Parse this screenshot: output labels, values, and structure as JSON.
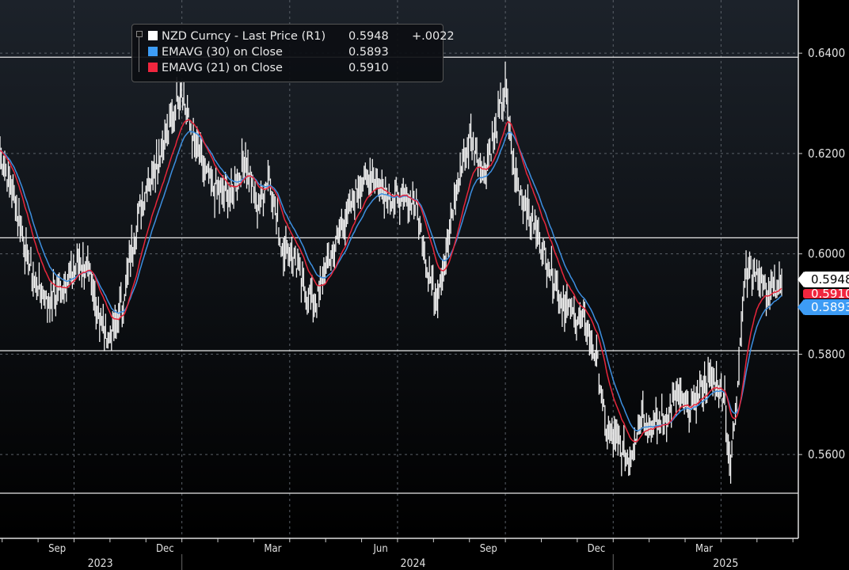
{
  "chart_data": {
    "type": "line",
    "title": "",
    "security": "NZD Curncy",
    "x_unit": "months since 2023-07-01",
    "xlim": [
      0.41,
      22.62
    ],
    "ylim": [
      0.5433,
      0.6506
    ],
    "y_axis_side": "right",
    "y_ticks": [
      "0.6400",
      "0.6200",
      "0.6000",
      "0.5800",
      "0.5600"
    ],
    "y_tick_values": [
      0.64,
      0.62,
      0.6,
      0.58,
      0.56
    ],
    "x_ticks": [
      {
        "t": 2,
        "label": "Sep"
      },
      {
        "t": 5,
        "label": "Dec"
      },
      {
        "t": 8,
        "label": "Mar"
      },
      {
        "t": 11,
        "label": "Jun"
      },
      {
        "t": 14,
        "label": "Sep"
      },
      {
        "t": 17,
        "label": "Dec"
      },
      {
        "t": 20,
        "label": "Mar"
      }
    ],
    "years": [
      {
        "label": "2023",
        "t": 3.2
      },
      {
        "label": "2024",
        "t": 11.9
      },
      {
        "label": "2025",
        "t": 20.6
      }
    ],
    "reference_lines": [
      0.6392,
      0.6032,
      0.5807,
      0.5523
    ],
    "grid": true,
    "legend_position": "top-left",
    "series": [
      {
        "name": "NZD Curncy - Last Price (R1)",
        "color": "#ffffff",
        "style": "hl-bars",
        "t": [
          0.41,
          0.85,
          1.3,
          1.74,
          2.18,
          2.62,
          2.84,
          3.17,
          3.5,
          3.83,
          4.05,
          4.38,
          4.71,
          5.15,
          5.44,
          5.7,
          6.03,
          6.36,
          6.8,
          7.24,
          7.57,
          7.9,
          8.23,
          8.56,
          8.89,
          9.22,
          9.56,
          9.89,
          10.33,
          10.77,
          11.21,
          11.65,
          11.98,
          12.31,
          12.53,
          12.86,
          13.19,
          13.52,
          13.85,
          14.18,
          14.47,
          14.73,
          15.06,
          15.39,
          15.72,
          16.05,
          16.38,
          16.71,
          17.04,
          17.26,
          17.6,
          17.93,
          18.26,
          18.59,
          18.92,
          19.25,
          19.58,
          19.91,
          20.24,
          20.57,
          20.72,
          20.9,
          21.12,
          21.44,
          21.77,
          22.11,
          22.18
        ],
        "values": [
          0.6206,
          0.6095,
          0.5953,
          0.5906,
          0.5938,
          0.5985,
          0.597,
          0.5875,
          0.5827,
          0.5906,
          0.6,
          0.6111,
          0.6174,
          0.6253,
          0.6332,
          0.6253,
          0.6174,
          0.6127,
          0.6111,
          0.619,
          0.6095,
          0.6158,
          0.6016,
          0.6,
          0.5922,
          0.5906,
          0.5985,
          0.6048,
          0.6127,
          0.6158,
          0.6111,
          0.6111,
          0.6095,
          0.597,
          0.5906,
          0.6016,
          0.6158,
          0.6237,
          0.6158,
          0.6237,
          0.6332,
          0.6158,
          0.6095,
          0.6032,
          0.597,
          0.5906,
          0.5875,
          0.5859,
          0.578,
          0.5654,
          0.5622,
          0.5591,
          0.5685,
          0.5654,
          0.567,
          0.5717,
          0.5685,
          0.5733,
          0.5749,
          0.5717,
          0.556,
          0.5717,
          0.5953,
          0.597,
          0.5922,
          0.5938,
          0.5948
        ]
      },
      {
        "name": "EMAVG (30) on Close",
        "color": "#3d8fe0",
        "period": 30,
        "source": "computed from close"
      },
      {
        "name": "EMAVG (21) on Close",
        "color": "#e8263c",
        "period": 21,
        "source": "computed from close"
      }
    ]
  },
  "legend": {
    "items": [
      {
        "label": "NZD Curncy - Last Price (R1)",
        "value": "0.5948",
        "change": "+.0022",
        "color": "#ffffff"
      },
      {
        "label": "EMAVG (30)  on Close",
        "value": "0.5893",
        "color": "#3d9cf5"
      },
      {
        "label": "EMAVG (21)  on Close",
        "value": "0.5910",
        "color": "#f0263e"
      }
    ]
  },
  "tags": {
    "last": "0.5948",
    "ema21": "0.5910",
    "ema30": "0.5893"
  }
}
